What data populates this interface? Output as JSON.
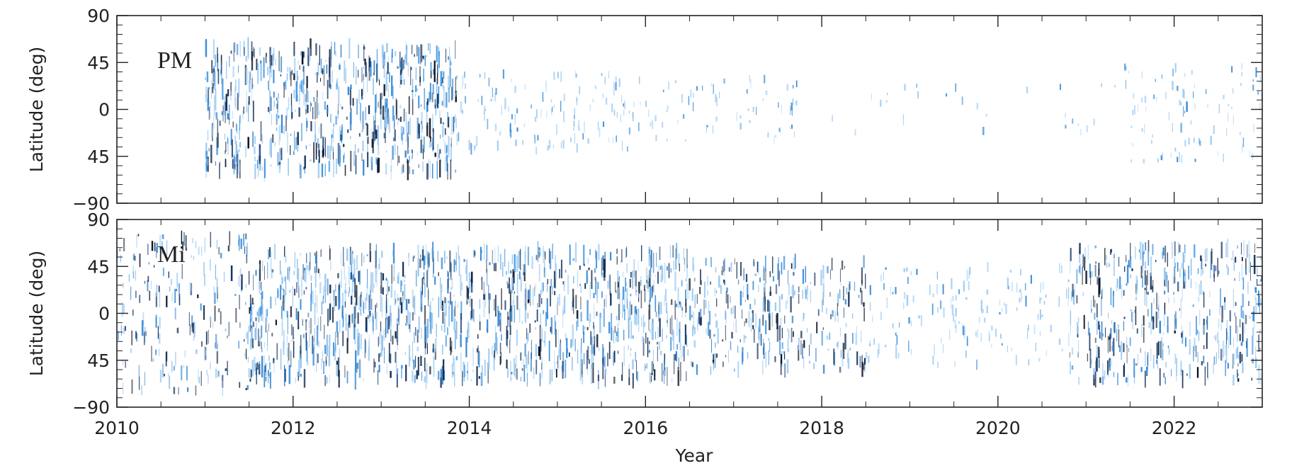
{
  "chart_data": {
    "type": "heatmap",
    "xlabel": "Year",
    "x_ticks": [
      2010,
      2012,
      2014,
      2016,
      2018,
      2020,
      2022
    ],
    "xlim": [
      2010,
      2023
    ],
    "colors": {
      "axis": "#222222",
      "light_blue": "#9ccaf2",
      "mid_blue": "#2f86d6",
      "dark_blue": "#0d2b55",
      "navy": "#050e22"
    },
    "panels": [
      {
        "id": "PM",
        "label": "PM",
        "ylabel": "Latitude (deg)",
        "y_ticks": [
          "90",
          "45",
          "0",
          "45",
          "−90"
        ],
        "ylim": [
          -90,
          90
        ],
        "activity": [
          {
            "start": 2011.0,
            "end": 2013.85,
            "density": 0.95,
            "north_band": [
              0,
              60
            ],
            "south_band": [
              -60,
              0
            ]
          },
          {
            "start": 2013.85,
            "end": 2015.8,
            "density": 0.25,
            "north_band": [
              0,
              35
            ],
            "south_band": [
              -40,
              0
            ]
          },
          {
            "start": 2015.8,
            "end": 2017.8,
            "density": 0.14,
            "north_band": [
              0,
              30
            ],
            "south_band": [
              -30,
              0
            ]
          },
          {
            "start": 2017.8,
            "end": 2021.4,
            "density": 0.03,
            "north_band": [
              0,
              25
            ],
            "south_band": [
              -25,
              0
            ]
          },
          {
            "start": 2021.4,
            "end": 2023.0,
            "density": 0.22,
            "north_band": [
              0,
              45
            ],
            "south_band": [
              -50,
              0
            ]
          }
        ]
      },
      {
        "id": "Mi",
        "label": "Mi",
        "ylabel": "Latitude (deg)",
        "y_ticks": [
          "90",
          "45",
          "0",
          "45",
          "−90"
        ],
        "ylim": [
          -90,
          90
        ],
        "activity": [
          {
            "start": 2010.0,
            "end": 2011.5,
            "density": 0.55,
            "north_band": [
              0,
              75
            ],
            "south_band": [
              -75,
              0
            ]
          },
          {
            "start": 2011.5,
            "end": 2016.5,
            "density": 0.95,
            "north_band": [
              0,
              60
            ],
            "south_band": [
              -65,
              0
            ]
          },
          {
            "start": 2016.5,
            "end": 2018.5,
            "density": 0.6,
            "north_band": [
              0,
              50
            ],
            "south_band": [
              -55,
              0
            ]
          },
          {
            "start": 2018.5,
            "end": 2020.8,
            "density": 0.25,
            "north_band": [
              0,
              45
            ],
            "south_band": [
              -50,
              0
            ]
          },
          {
            "start": 2020.8,
            "end": 2023.0,
            "density": 0.8,
            "north_band": [
              0,
              65
            ],
            "south_band": [
              -65,
              0
            ]
          }
        ]
      }
    ]
  }
}
